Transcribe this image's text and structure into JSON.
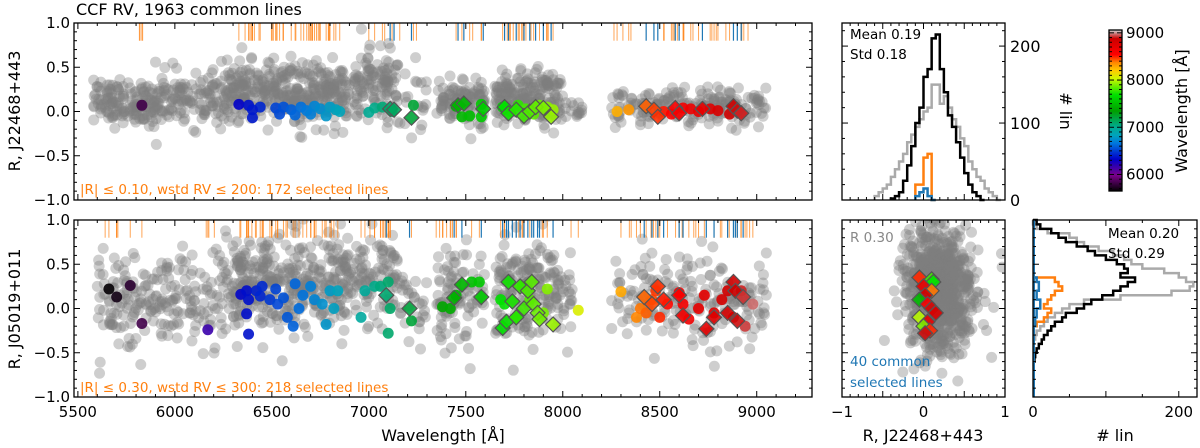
{
  "colors": {
    "gray": "#7f7f7f",
    "orange": "#ff7f0e",
    "blue": "#1f77b4",
    "black": "#000000",
    "lightgray": "#aaaaaa",
    "diamond_edge": "#555555"
  },
  "colormap": {
    "name": "nipy_spectral",
    "stops": [
      [
        0,
        "#000000"
      ],
      [
        0.1,
        "#7a008a"
      ],
      [
        0.2,
        "#0000c8"
      ],
      [
        0.3,
        "#0077dd"
      ],
      [
        0.35,
        "#00a4bb"
      ],
      [
        0.4,
        "#00aa90"
      ],
      [
        0.5,
        "#00a000"
      ],
      [
        0.6,
        "#00e000"
      ],
      [
        0.7,
        "#ccf800"
      ],
      [
        0.75,
        "#ffcc00"
      ],
      [
        0.8,
        "#ff8800"
      ],
      [
        0.85,
        "#ff0000"
      ],
      [
        0.95,
        "#cc0000"
      ],
      [
        1.0,
        "#cccccc"
      ]
    ],
    "range": [
      5650,
      9060
    ]
  },
  "chart_data": [
    {
      "id": "top-main",
      "type": "scatter",
      "title": "CCF RV, 1963 common lines",
      "xlabel": "",
      "ylabel": "R, J22468+443",
      "xlim": [
        5480,
        9285
      ],
      "ylim": [
        -1.0,
        1.0
      ],
      "yticks": [
        "1.0",
        "0.5",
        "0.0",
        "−0.5",
        "−1.0"
      ],
      "annotation": "|R| ≤ 0.10, wstd RV ≤ 200: 172 selected lines",
      "all_lines_clusters": [
        [
          5580,
          5900,
          0.1,
          0.12,
          150
        ],
        [
          5900,
          6300,
          0.15,
          0.15,
          150
        ],
        [
          6280,
          6900,
          0.2,
          0.17,
          380
        ],
        [
          6920,
          7150,
          0.3,
          0.2,
          120
        ],
        [
          7150,
          7300,
          0.1,
          0.2,
          20
        ],
        [
          7350,
          7600,
          0.12,
          0.15,
          110
        ],
        [
          7650,
          8000,
          0.15,
          0.15,
          210
        ],
        [
          8000,
          8100,
          0.0,
          0.07,
          15
        ],
        [
          8250,
          9050,
          0.05,
          0.1,
          200
        ]
      ],
      "selected": [
        [
          5830,
          0.07
        ],
        [
          6330,
          0.08
        ],
        [
          6380,
          0.07
        ],
        [
          6400,
          -0.07
        ],
        [
          6440,
          0.05
        ],
        [
          6400,
          0.02
        ],
        [
          6520,
          0.04
        ],
        [
          6540,
          -0.03
        ],
        [
          6560,
          0.05
        ],
        [
          6600,
          0.02
        ],
        [
          6620,
          -0.04
        ],
        [
          6650,
          0.05
        ],
        [
          6680,
          0.01
        ],
        [
          6700,
          -0.03
        ],
        [
          6720,
          0.06
        ],
        [
          6750,
          0.03
        ],
        [
          6780,
          -0.05
        ],
        [
          6800,
          0.05
        ],
        [
          6830,
          0.02
        ],
        [
          6850,
          0.0
        ],
        [
          7000,
          -0.01
        ],
        [
          7030,
          0.04
        ],
        [
          7070,
          0.05
        ],
        [
          7120,
          0.0
        ],
        [
          7230,
          0.07
        ],
        [
          7450,
          0.06
        ],
        [
          7480,
          -0.06
        ],
        [
          7520,
          -0.05
        ],
        [
          7580,
          0.08
        ],
        [
          7580,
          -0.06
        ],
        [
          7690,
          0.05
        ],
        [
          7730,
          0.0
        ],
        [
          7770,
          0.07
        ],
        [
          7810,
          0.03
        ],
        [
          7850,
          -0.03
        ],
        [
          7880,
          0.07
        ],
        [
          7920,
          0.05
        ],
        [
          7950,
          0.02
        ],
        [
          8280,
          0.0
        ],
        [
          8340,
          0.02
        ],
        [
          8520,
          0.0
        ],
        [
          8560,
          -0.03
        ],
        [
          8620,
          0.04
        ],
        [
          8660,
          0.03
        ],
        [
          8700,
          0.0
        ],
        [
          8760,
          0.03
        ],
        [
          8800,
          0.01
        ],
        [
          8860,
          -0.03
        ],
        [
          8920,
          -0.02
        ]
      ],
      "common": [
        [
          7110,
          0.03
        ],
        [
          7130,
          0.02
        ],
        [
          7220,
          -0.07
        ],
        [
          7460,
          0.07
        ],
        [
          7490,
          0.09
        ],
        [
          7590,
          0.03
        ],
        [
          7700,
          0.05
        ],
        [
          7720,
          -0.02
        ],
        [
          7760,
          0.02
        ],
        [
          7800,
          -0.05
        ],
        [
          7830,
          0.0
        ],
        [
          7860,
          0.05
        ],
        [
          7900,
          0.04
        ],
        [
          7940,
          -0.06
        ],
        [
          8430,
          0.06
        ],
        [
          8470,
          0.02
        ],
        [
          8490,
          -0.06
        ],
        [
          8580,
          0.04
        ],
        [
          8600,
          -0.02
        ],
        [
          8720,
          0.03
        ],
        [
          8880,
          0.06
        ],
        [
          8900,
          0.01
        ],
        [
          8920,
          -0.02
        ]
      ]
    },
    {
      "id": "bottom-main",
      "type": "scatter",
      "xlabel": "Wavelength [Å]",
      "ylabel": "R, J05019+011",
      "xlim": [
        5480,
        9285
      ],
      "ylim": [
        -1.0,
        1.0
      ],
      "xticks": [
        "5500",
        "6000",
        "6500",
        "7000",
        "7500",
        "8000",
        "8500",
        "9000"
      ],
      "yticks": [
        "1.0",
        "0.5",
        "0.0",
        "−0.5",
        "−1.0"
      ],
      "annotation": "|R| ≤ 0.30, wstd RV ≤ 300: 218 selected lines",
      "all_lines_clusters": [
        [
          5600,
          5950,
          0.1,
          0.25,
          120
        ],
        [
          5950,
          6300,
          0.15,
          0.28,
          110
        ],
        [
          6300,
          6900,
          0.25,
          0.28,
          380
        ],
        [
          6900,
          7150,
          0.3,
          0.25,
          100
        ],
        [
          7150,
          7300,
          0.05,
          0.3,
          30
        ],
        [
          7350,
          7600,
          0.15,
          0.25,
          100
        ],
        [
          7650,
          8050,
          0.25,
          0.28,
          210
        ],
        [
          8250,
          9050,
          0.1,
          0.25,
          200
        ]
      ],
      "selected": [
        [
          5660,
          0.22
        ],
        [
          5700,
          0.13
        ],
        [
          5770,
          0.26
        ],
        [
          5830,
          -0.17
        ],
        [
          6170,
          -0.24
        ],
        [
          6340,
          0.16
        ],
        [
          6370,
          0.2
        ],
        [
          6380,
          0.1
        ],
        [
          6370,
          -0.06
        ],
        [
          6380,
          -0.29
        ],
        [
          6420,
          0.2
        ],
        [
          6440,
          0.14
        ],
        [
          6450,
          0.25
        ],
        [
          6490,
          0.1
        ],
        [
          6520,
          0.22
        ],
        [
          6530,
          0.05
        ],
        [
          6560,
          0.12
        ],
        [
          6580,
          -0.1
        ],
        [
          6610,
          -0.2
        ],
        [
          6620,
          0.28
        ],
        [
          6640,
          0.0
        ],
        [
          6660,
          0.15
        ],
        [
          6700,
          0.25
        ],
        [
          6720,
          0.1
        ],
        [
          6760,
          0.05
        ],
        [
          6780,
          -0.18
        ],
        [
          6800,
          0.2
        ],
        [
          6820,
          0.0
        ],
        [
          6840,
          0.2
        ],
        [
          6960,
          -0.1
        ],
        [
          6980,
          0.2
        ],
        [
          7030,
          0.25
        ],
        [
          7060,
          0.25
        ],
        [
          7100,
          0.3
        ],
        [
          7110,
          0.0
        ],
        [
          7100,
          -0.28
        ],
        [
          7220,
          -0.14
        ],
        [
          7380,
          0.02
        ],
        [
          7420,
          0.0
        ],
        [
          7450,
          0.15
        ],
        [
          7530,
          0.3
        ],
        [
          7570,
          0.3
        ],
        [
          7680,
          0.1
        ],
        [
          7700,
          0.05
        ],
        [
          7760,
          -0.1
        ],
        [
          7790,
          0.25
        ],
        [
          7830,
          0.1
        ],
        [
          7900,
          -0.05
        ],
        [
          7920,
          0.22
        ],
        [
          8080,
          -0.02
        ],
        [
          8300,
          0.19
        ],
        [
          8380,
          -0.1
        ],
        [
          8400,
          0.0
        ],
        [
          8430,
          -0.05
        ],
        [
          8460,
          0.1
        ],
        [
          8480,
          0.2
        ],
        [
          8500,
          -0.1
        ],
        [
          8540,
          0.05
        ],
        [
          8600,
          0.18
        ],
        [
          8620,
          0.05
        ],
        [
          8650,
          -0.12
        ],
        [
          8700,
          0.0
        ],
        [
          8730,
          0.15
        ],
        [
          8780,
          -0.05
        ],
        [
          8820,
          0.1
        ],
        [
          8850,
          0.2
        ],
        [
          8880,
          -0.1
        ],
        [
          8920,
          0.2
        ],
        [
          8940,
          -0.2
        ],
        [
          8980,
          0.05
        ]
      ],
      "common": [
        [
          7090,
          0.15
        ],
        [
          7210,
          0.0
        ],
        [
          7440,
          0.12
        ],
        [
          7480,
          0.27
        ],
        [
          7580,
          0.13
        ],
        [
          7690,
          -0.22
        ],
        [
          7710,
          -0.15
        ],
        [
          7720,
          0.3
        ],
        [
          7740,
          0.08
        ],
        [
          7760,
          -0.1
        ],
        [
          7780,
          0.25
        ],
        [
          7800,
          0.0
        ],
        [
          7820,
          0.2
        ],
        [
          7840,
          0.3
        ],
        [
          7850,
          0.05
        ],
        [
          7870,
          -0.05
        ],
        [
          7880,
          -0.12
        ],
        [
          7950,
          -0.18
        ],
        [
          8420,
          0.13
        ],
        [
          8460,
          0.05
        ],
        [
          8490,
          0.25
        ],
        [
          8520,
          0.1
        ],
        [
          8600,
          0.15
        ],
        [
          8620,
          -0.08
        ],
        [
          8740,
          -0.23
        ],
        [
          8780,
          -0.1
        ],
        [
          8850,
          -0.05
        ],
        [
          8880,
          0.3
        ],
        [
          8890,
          0.2
        ],
        [
          8900,
          -0.14
        ],
        [
          8930,
          0.13
        ]
      ]
    },
    {
      "id": "top-hist",
      "type": "bar",
      "orientation": "vertical",
      "ylabel": "# lin",
      "xlim": [
        -1,
        1
      ],
      "ylim": [
        0,
        230
      ],
      "yticks": [
        "0",
        "100",
        "200"
      ],
      "bin_width": 0.05,
      "stats": [
        "Mean 0.19",
        "Std 0.18"
      ],
      "series": [
        {
          "name": "all-other",
          "color": "lightgray",
          "start": -0.6,
          "values": [
            5,
            10,
            15,
            20,
            30,
            40,
            50,
            60,
            75,
            85,
            95,
            105,
            115,
            120,
            150,
            150,
            125,
            135,
            120,
            105,
            95,
            80,
            70,
            50,
            40,
            30,
            25,
            15,
            10,
            5,
            0
          ]
        },
        {
          "name": "all",
          "color": "black",
          "start": -0.4,
          "values": [
            2,
            5,
            10,
            25,
            45,
            70,
            100,
            120,
            160,
            170,
            210,
            215,
            170,
            140,
            110,
            95,
            75,
            55,
            35,
            20,
            10,
            5,
            0
          ]
        },
        {
          "name": "selected",
          "color": "orange",
          "start": -0.1,
          "values": [
            20,
            20,
            55,
            60,
            0
          ]
        },
        {
          "name": "common",
          "color": "blue",
          "start": -0.1,
          "values": [
            5,
            10,
            15,
            5,
            0
          ]
        }
      ]
    },
    {
      "id": "bottom-scatter",
      "type": "scatter",
      "xlabel": "R, J22468+443",
      "xlim": [
        -1,
        1
      ],
      "ylim": [
        -1,
        1
      ],
      "xticks": [
        "−1",
        "0",
        "1"
      ],
      "label_r": "R 0.30",
      "label_common": [
        "40 common",
        "selected lines"
      ],
      "all_cloud": {
        "x_center": 0.2,
        "x_spread": 0.2,
        "y_center": 0.2,
        "y_spread": 0.33,
        "count": 900
      },
      "common": [
        [
          -0.05,
          0.35,
          8500
        ],
        [
          0.1,
          0.33,
          7800
        ],
        [
          0.12,
          0.3,
          7700
        ],
        [
          0.0,
          0.25,
          8700
        ],
        [
          0.1,
          0.2,
          8400
        ],
        [
          0.02,
          0.15,
          8850
        ],
        [
          -0.05,
          0.1,
          7500
        ],
        [
          0.05,
          0.05,
          8600
        ],
        [
          0.1,
          0.0,
          8900
        ],
        [
          0.15,
          -0.05,
          8800
        ],
        [
          -0.05,
          -0.1,
          8000
        ],
        [
          0.05,
          -0.15,
          8700
        ],
        [
          0.0,
          -0.2,
          7900
        ],
        [
          0.08,
          -0.25,
          8500
        ],
        [
          0.02,
          -0.28,
          8900
        ]
      ]
    },
    {
      "id": "bottom-hist",
      "type": "bar",
      "orientation": "horizontal",
      "xlabel": "# lin",
      "xlim": [
        0,
        225
      ],
      "ylim": [
        -1,
        1
      ],
      "xticks": [
        "0",
        "200"
      ],
      "bin_width": 0.05,
      "stats": [
        "Mean 0.20",
        "Std 0.29"
      ],
      "series": [
        {
          "name": "all-other",
          "color": "lightgray",
          "start": -0.35,
          "values": [
            3,
            5,
            10,
            15,
            20,
            30,
            40,
            50,
            70,
            120,
            190,
            215,
            220,
            210,
            200,
            180,
            150,
            135,
            125,
            110,
            90,
            70,
            60,
            50,
            20,
            5,
            0
          ]
        },
        {
          "name": "all",
          "color": "black",
          "start": -0.65,
          "values": [
            1,
            2,
            3,
            5,
            8,
            12,
            15,
            20,
            25,
            30,
            40,
            45,
            60,
            70,
            80,
            95,
            110,
            120,
            130,
            140,
            120,
            130,
            125,
            115,
            100,
            85,
            75,
            60,
            45,
            35,
            25,
            10,
            5
          ]
        },
        {
          "name": "selected",
          "color": "orange",
          "start": -0.2,
          "values": [
            5,
            15,
            20,
            25,
            15,
            20,
            25,
            30,
            40,
            35,
            30
          ]
        },
        {
          "name": "common",
          "color": "blue",
          "start": -0.2,
          "values": [
            3,
            3,
            5,
            5,
            10,
            10,
            5,
            5,
            8,
            8,
            5
          ]
        }
      ]
    },
    {
      "id": "colorbar",
      "type": "heatmap",
      "label": "Wavelength [Å]",
      "ticks": [
        "6000",
        "7000",
        "8000",
        "9000"
      ]
    }
  ]
}
